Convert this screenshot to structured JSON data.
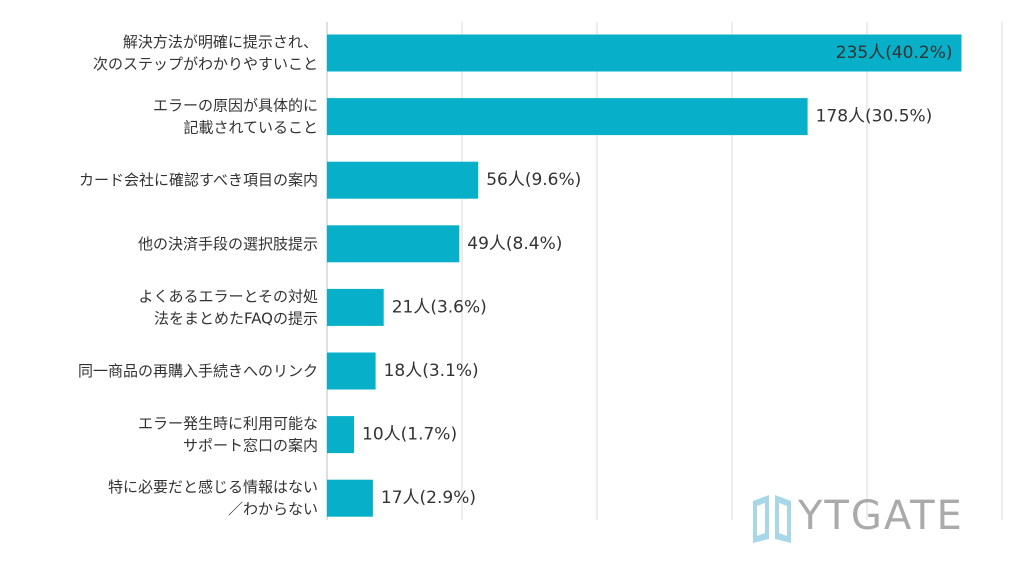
{
  "chart_data": {
    "type": "bar",
    "orientation": "horizontal",
    "categories": [
      [
        "解決方法が明確に提示され、",
        "次のステップがわかりやすいこと"
      ],
      [
        "エラーの原因が具体的に",
        "記載されていること"
      ],
      [
        "カード会社に確認すべき項目の案内"
      ],
      [
        "他の決済手段の選択肢提示"
      ],
      [
        "よくあるエラーとその対処",
        "法をまとめたFAQの提示"
      ],
      [
        "同一商品の再購入手続きへのリンク"
      ],
      [
        "エラー発生時に利用可能な",
        "サポート窓口の案内"
      ],
      [
        "特に必要だと感じる情報はない",
        "／わからない"
      ]
    ],
    "values": [
      235,
      178,
      56,
      49,
      21,
      18,
      10,
      17
    ],
    "data_labels": [
      "235人(40.2%)",
      "178人(30.5%)",
      "56人(9.6%)",
      "49人(8.4%)",
      "21人(3.6%)",
      "18人(3.1%)",
      "10人(1.7%)",
      "17人(2.9%)"
    ],
    "xlim": [
      0,
      250
    ],
    "grid": true,
    "bar_color": "#08afc8",
    "grid_color": "#d9d9d9",
    "label_color": "#333333"
  },
  "logo": {
    "text": "YTGATE",
    "color": "#aaaaaa",
    "icon_color": "#a8d8e8"
  }
}
